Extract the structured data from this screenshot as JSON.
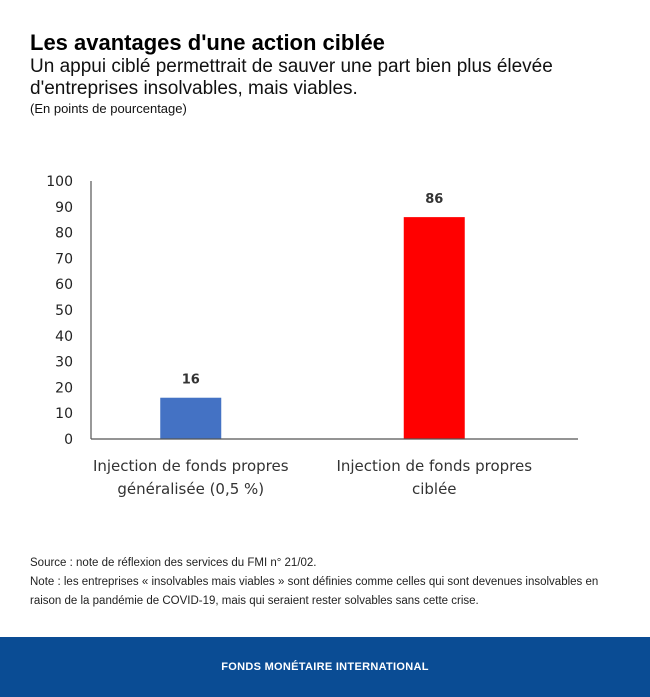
{
  "header": {
    "title": "Les avantages d'une action ciblée",
    "subtitle": "Un appui ciblé permettrait de sauver une part bien plus élevée d'entreprises insolvables, mais viables.",
    "units": "(En points de pourcentage)"
  },
  "chart_data": {
    "type": "bar",
    "title": "Les avantages d'une action ciblée",
    "xlabel": "",
    "ylabel": "",
    "categories": [
      [
        "Injection de fonds propres",
        "généralisée (0,5 %)"
      ],
      [
        "Injection de fonds propres",
        "ciblée"
      ]
    ],
    "values": [
      16,
      86
    ],
    "data_labels": [
      "16",
      "86"
    ],
    "colors": [
      "#4472c4",
      "#ff0000"
    ],
    "ylim": [
      0,
      100
    ],
    "yticks": [
      "0",
      "10",
      "20",
      "30",
      "40",
      "50",
      "60",
      "70",
      "80",
      "90",
      "100"
    ],
    "grid": false
  },
  "footnotes": {
    "source": "Source : note de réflexion des services du FMI n° 21/02.",
    "note": "Note : les entreprises « insolvables mais viables » sont définies comme celles qui sont devenues insolvables en raison de la pandémie de COVID-19, mais qui seraient rester solvables sans cette crise."
  },
  "footer": {
    "org": "FONDS MONÉTAIRE INTERNATIONAL",
    "background": "#0a4c94"
  }
}
